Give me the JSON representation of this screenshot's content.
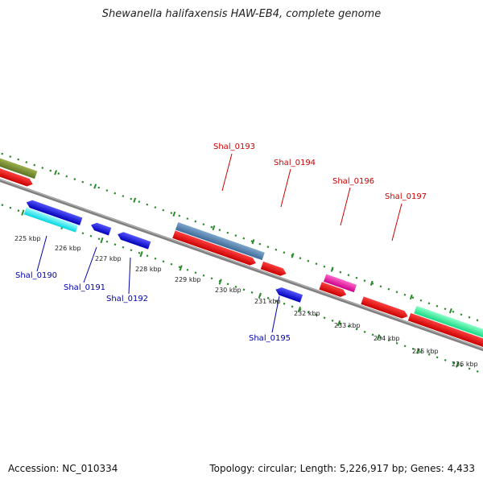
{
  "title": "Shewanella halifaxensis HAW-EB4, complete genome",
  "footer": {
    "accession": "Accession: NC_010334",
    "summary": "Topology: circular; Length: 5,226,917 bp; Genes: 4,433"
  },
  "colors": {
    "backbone": "#7d7d7d",
    "tick": "#2a8a2a",
    "label_forward": "#cc0000",
    "label_reverse": "#0000aa"
  },
  "scale_labels": [
    "225 kbp",
    "226 kbp",
    "227 kbp",
    "228 kbp",
    "229 kbp",
    "230 kbp",
    "231 kbp",
    "232 kbp",
    "233 kbp",
    "234 kbp",
    "235 kbp",
    "236 kbp"
  ],
  "forward_labels": [
    "Shal_0193",
    "Shal_0194",
    "Shal_0196",
    "Shal_0197"
  ],
  "reverse_labels": [
    "Shal_0190",
    "Shal_0191",
    "Shal_0192",
    "Shal_0195"
  ]
}
